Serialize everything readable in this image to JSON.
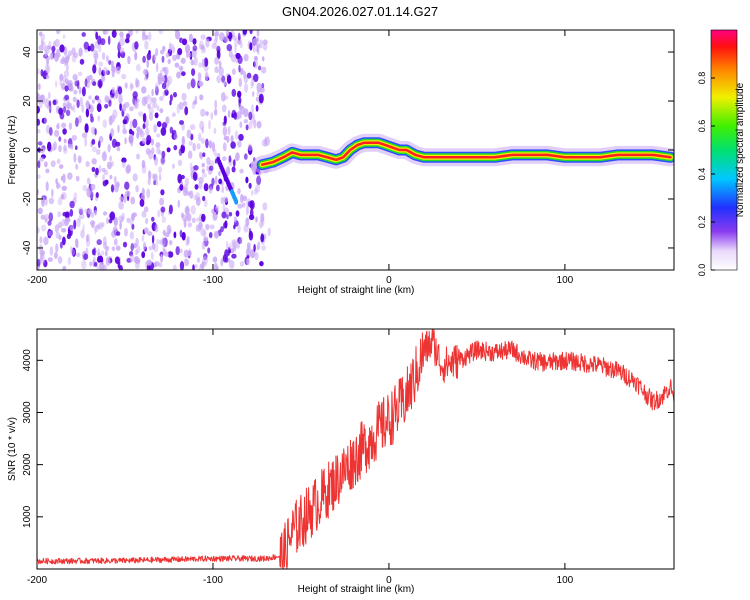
{
  "title": "GN04.2026.027.01.14.G27",
  "colors": {
    "snr_line": "#ee3333",
    "noise_dot_dark": "#5a00e0",
    "noise_dot_light": "#c9a8f5",
    "ridge_core": "#ff2020",
    "ridge_mid": "#ffe800",
    "ridge_outer": "#22dd22",
    "ridge_edge": "#1a40ff"
  },
  "chart_data": [
    {
      "type": "heatmap",
      "title": "GN04.2026.027.01.14.G27",
      "xlabel": "Height of straight line (km)",
      "ylabel": "Frequency (Hz)",
      "xlim": [
        -200,
        162
      ],
      "ylim": [
        -49,
        49
      ],
      "xticks": [
        -200,
        -100,
        0,
        100
      ],
      "yticks": [
        -40,
        -20,
        0,
        20,
        40
      ],
      "noise_region_x": [
        -200,
        -70
      ],
      "ridge": {
        "x": [
          -72,
          -66,
          -60,
          -55,
          -50,
          -45,
          -40,
          -35,
          -30,
          -26,
          -22,
          -18,
          -14,
          -10,
          -6,
          -2,
          2,
          6,
          10,
          15,
          20,
          30,
          40,
          50,
          60,
          70,
          80,
          90,
          100,
          110,
          120,
          130,
          140,
          150,
          160
        ],
        "freq": [
          -6,
          -5,
          -3,
          -1,
          -2,
          -2,
          -2,
          -3,
          -4,
          -3,
          0,
          2,
          3,
          3,
          3,
          2,
          1,
          0,
          0,
          -2,
          -3,
          -3,
          -3,
          -3,
          -3,
          -2,
          -2,
          -2,
          -3,
          -3,
          -3,
          -2,
          -2,
          -2,
          -3
        ]
      },
      "colorbar": {
        "label": "Normalized spectral amplitude",
        "range": [
          0,
          1
        ],
        "ticks": [
          0.0,
          0.2,
          0.4,
          0.6,
          0.8
        ]
      }
    },
    {
      "type": "line",
      "xlabel": "Height of straight line (km)",
      "ylabel": "SNR (10 * v/v)",
      "xlim": [
        -200,
        162
      ],
      "ylim": [
        0,
        4600
      ],
      "xticks": [
        -200,
        -100,
        0,
        100
      ],
      "yticks": [
        1000,
        2000,
        3000,
        4000
      ],
      "series": [
        {
          "name": "SNR",
          "x": [
            -200,
            -150,
            -100,
            -70,
            -60,
            -55,
            -50,
            -45,
            -40,
            -35,
            -30,
            -25,
            -20,
            -15,
            -10,
            -5,
            0,
            5,
            10,
            15,
            20,
            25,
            30,
            40,
            50,
            60,
            70,
            80,
            90,
            100,
            110,
            120,
            130,
            140,
            145,
            150,
            155,
            160,
            162
          ],
          "y": [
            150,
            160,
            200,
            200,
            260,
            700,
            900,
            1100,
            1300,
            1500,
            1700,
            1900,
            2100,
            2300,
            2500,
            2700,
            2850,
            3050,
            3300,
            3700,
            4200,
            4350,
            3900,
            4000,
            4200,
            4150,
            4200,
            4000,
            3950,
            4000,
            3950,
            3900,
            3800,
            3600,
            3400,
            3200,
            3300,
            3500,
            3300
          ]
        }
      ]
    }
  ]
}
